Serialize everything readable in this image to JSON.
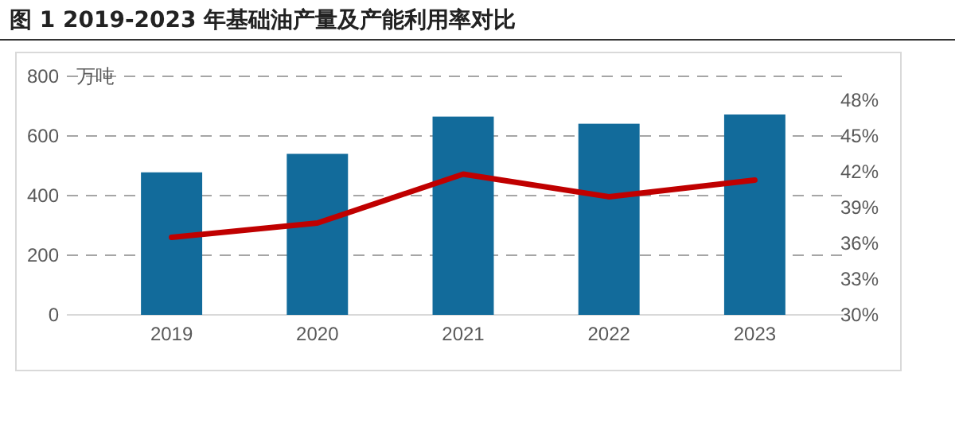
{
  "chart_data": {
    "type": "bar",
    "title": "图 1 2019-2023 年基础油产量及产能利用率对比",
    "ylabel": "万吨",
    "categories": [
      "2019",
      "2020",
      "2021",
      "2022",
      "2023"
    ],
    "series": [
      {
        "color": "#126b9b",
        "values": [
          478,
          540,
          665,
          641,
          672
        ]
      },
      {
        "type": "line",
        "axis": "y2",
        "color": "#c00000",
        "values": [
          36.5,
          37.7,
          41.8,
          39.9,
          41.3
        ]
      }
    ],
    "ylim": [
      0,
      800
    ],
    "yticks": [
      0,
      200,
      400,
      600,
      800
    ],
    "y2lim": [
      30,
      50
    ],
    "y2ticks": [
      {
        "value": 30,
        "label": "30%"
      },
      {
        "value": 33,
        "label": "33%"
      },
      {
        "value": 36,
        "label": "36%"
      },
      {
        "value": 39,
        "label": "39%"
      },
      {
        "value": 42,
        "label": "42%"
      },
      {
        "value": 45,
        "label": "45%"
      },
      {
        "value": 48,
        "label": "48%"
      }
    ],
    "grid": "y",
    "marker": "none",
    "line_style": "solid"
  }
}
